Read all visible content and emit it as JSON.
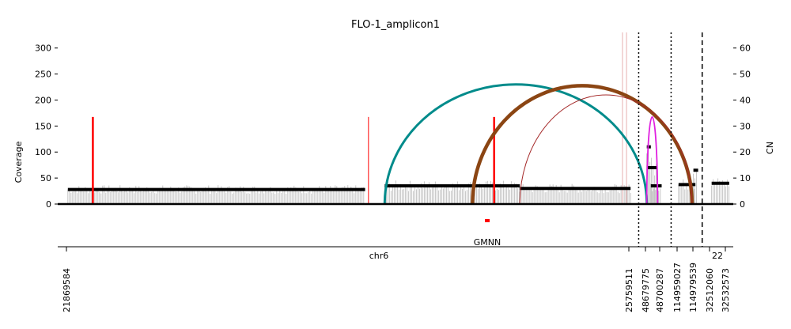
{
  "chart_data": {
    "type": "amplicon-coverage-plot",
    "title": "FLO-1_amplicon1",
    "ylabel_left": "Coverage",
    "ylabel_right": "CN",
    "ylim_left": [
      0,
      330
    ],
    "ylim_right": [
      0,
      66
    ],
    "yticks_left": [
      0,
      50,
      100,
      150,
      200,
      250,
      300
    ],
    "yticks_right": [
      0,
      10,
      20,
      30,
      40,
      50,
      60
    ],
    "chromosome_labels": [
      "chr6",
      "22"
    ],
    "gene_label": "GMNN",
    "breakpoint_labels": [
      "21869584",
      "25759511",
      "48679775",
      "48700287",
      "114959027",
      "114979539",
      "32512060",
      "32532573"
    ],
    "segments_cn": [
      {
        "start": 0.015,
        "end": 0.455,
        "cn": 5.6
      },
      {
        "start": 0.484,
        "end": 0.684,
        "cn": 7.0
      },
      {
        "start": 0.684,
        "end": 0.848,
        "cn": 6.0
      },
      {
        "start": 0.872,
        "end": 0.878,
        "cn": 22.0
      },
      {
        "start": 0.872,
        "end": 0.888,
        "cn": 14.0
      },
      {
        "start": 0.878,
        "end": 0.894,
        "cn": 7.0
      },
      {
        "start": 0.919,
        "end": 0.944,
        "cn": 7.5
      },
      {
        "start": 0.941,
        "end": 0.948,
        "cn": 13.0
      },
      {
        "start": 0.968,
        "end": 0.994,
        "cn": 8.0
      }
    ],
    "discordant_edges": [
      {
        "type": "everted",
        "color": "#008b8b",
        "x1": 0.484,
        "x2": 0.872,
        "height_cn": 46,
        "width": 3
      },
      {
        "type": "tandem",
        "color": "#8b4513",
        "x1": 0.614,
        "x2": 0.939,
        "height_cn": 45.5,
        "width": 4.5
      },
      {
        "type": "deletion-like",
        "color": "#a52a2a",
        "x1": 0.684,
        "x2": 0.939,
        "height_cn": 42,
        "width": 1
      },
      {
        "type": "foldback",
        "color": "#e020e0",
        "x1": 0.872,
        "x2": 0.888,
        "height_cn": 33.5,
        "width": 1.8
      }
    ],
    "source_edges": [
      {
        "x": 0.052,
        "cn": 33.5
      },
      {
        "x": 0.46,
        "cn": 33.5
      },
      {
        "x": 0.646,
        "cn": 33.5
      }
    ],
    "region_dividers": [
      {
        "x": 0.86,
        "style": "dotted"
      },
      {
        "x": 0.908,
        "style": "dotted"
      },
      {
        "x": 0.954,
        "style": "dashed"
      }
    ]
  }
}
